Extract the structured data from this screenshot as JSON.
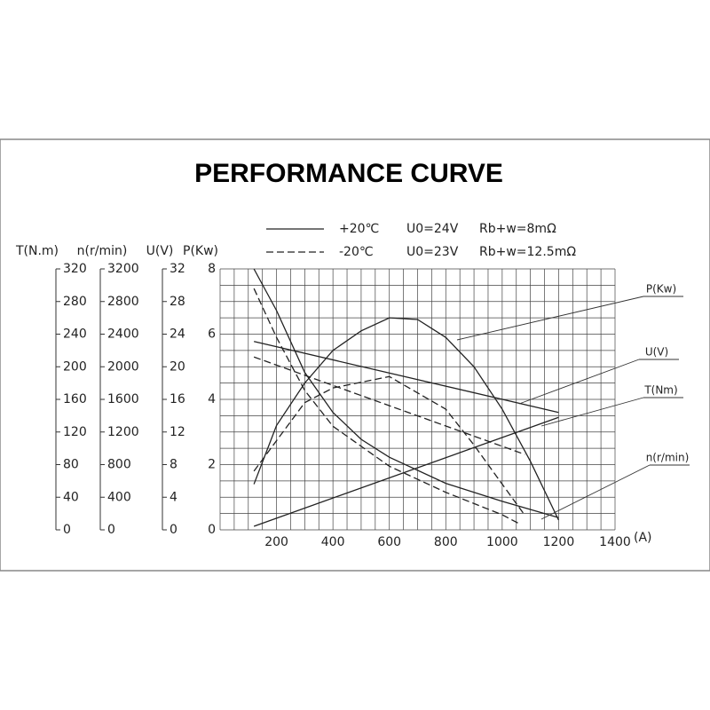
{
  "chart_data": {
    "type": "line",
    "title": "PERFORMANCE CURVE",
    "xlabel": "(A)",
    "xlim": [
      0,
      1400
    ],
    "xticks": [
      200,
      400,
      600,
      800,
      1000,
      1200,
      1400
    ],
    "grid": {
      "x_step": 50,
      "y_step": 0.5
    },
    "axes": [
      {
        "label": "T(N.m)",
        "ylim": [
          0,
          320
        ],
        "yticks": [
          0,
          40,
          80,
          120,
          160,
          200,
          240,
          280,
          320
        ]
      },
      {
        "label": "n(r/min)",
        "ylim": [
          0,
          3200
        ],
        "yticks": [
          0,
          400,
          800,
          1200,
          1600,
          2000,
          2400,
          2800,
          3200
        ]
      },
      {
        "label": "U(V)",
        "ylim": [
          0,
          32
        ],
        "yticks": [
          0,
          4,
          8,
          12,
          16,
          20,
          24,
          28,
          32
        ]
      },
      {
        "label": "P(Kw)",
        "ylim": [
          0,
          8
        ],
        "yticks": [
          0,
          2,
          4,
          6,
          8
        ]
      }
    ],
    "legend": [
      {
        "name": "+20℃",
        "voltage": "U0=24V",
        "resistance": "Rb+w=8mΩ",
        "dash": "none"
      },
      {
        "name": "-20℃",
        "voltage": "U0=23V",
        "resistance": "Rb+w=12.5mΩ",
        "dash": "8 4"
      }
    ],
    "curve_labels": [
      "P(Kw)",
      "U(V)",
      "T(Nm)",
      "n(r/min)"
    ],
    "series": [
      {
        "curve": 0,
        "legend": 0,
        "axis": 3,
        "color": "#222",
        "x": [
          120,
          200,
          300,
          400,
          500,
          600,
          700,
          800,
          900,
          1000,
          1100,
          1200
        ],
        "values": [
          1.4,
          3.2,
          4.5,
          5.5,
          6.1,
          6.5,
          6.45,
          5.9,
          5.0,
          3.7,
          2.1,
          0.3
        ]
      },
      {
        "curve": 1,
        "legend": 0,
        "axis": 2,
        "color": "#222",
        "x": [
          120,
          1200
        ],
        "values": [
          23.1,
          14.4
        ]
      },
      {
        "curve": 2,
        "legend": 0,
        "axis": 0,
        "color": "#222",
        "x": [
          120,
          1200
        ],
        "values": [
          4.4,
          138
        ]
      },
      {
        "curve": 3,
        "legend": 0,
        "axis": 1,
        "color": "#222",
        "x": [
          120,
          200,
          300,
          400,
          500,
          600,
          800,
          1000,
          1200
        ],
        "values": [
          3200,
          2690,
          1930,
          1440,
          1110,
          890,
          570,
          350,
          150
        ]
      },
      {
        "curve": 0,
        "legend": 1,
        "axis": 3,
        "color": "#222",
        "x": [
          120,
          300,
          400,
          600,
          800,
          900,
          1000,
          1080
        ],
        "values": [
          1.8,
          3.9,
          4.35,
          4.7,
          3.7,
          2.6,
          1.4,
          0.45
        ]
      },
      {
        "curve": 1,
        "legend": 1,
        "axis": 2,
        "color": "#222",
        "x": [
          120,
          1080
        ],
        "values": [
          21.2,
          9.25
        ]
      },
      {
        "curve": 3,
        "legend": 1,
        "axis": 1,
        "color": "#222",
        "x": [
          120,
          200,
          300,
          400,
          600,
          800,
          1000,
          1060
        ],
        "values": [
          2960,
          2360,
          1710,
          1270,
          780,
          460,
          185,
          76
        ]
      }
    ]
  }
}
